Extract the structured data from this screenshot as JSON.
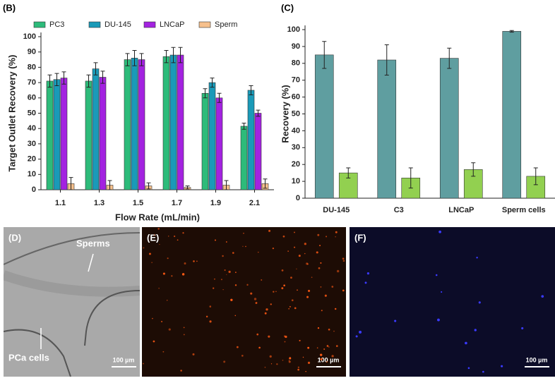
{
  "chart_data": [
    {
      "type": "bar",
      "panel": "(B)",
      "y_label": "Target Outlet Recovery (%)",
      "x_label": "Flow Rate (mL/min)",
      "categories": [
        "1.1",
        "1.3",
        "1.5",
        "1.7",
        "1.9",
        "2.1"
      ],
      "series": [
        {
          "name": "PC3",
          "color": "#2dbb7a",
          "values": [
            71,
            71,
            85,
            87,
            63,
            41.5
          ],
          "errors": [
            4,
            4,
            4,
            4,
            3,
            2
          ]
        },
        {
          "name": "DU-145",
          "color": "#1a9ab8",
          "values": [
            72,
            79,
            86,
            88,
            70,
            65
          ],
          "errors": [
            4,
            4,
            5,
            5,
            3,
            3
          ]
        },
        {
          "name": "LNCaP",
          "color": "#a322e0",
          "values": [
            73,
            73.5,
            85,
            88,
            60,
            50
          ],
          "errors": [
            4,
            4,
            4,
            5,
            3,
            2
          ]
        },
        {
          "name": "Sperm",
          "color": "#f6c08c",
          "values": [
            4,
            3,
            2.5,
            1.5,
            3,
            4
          ],
          "errors": [
            4,
            3,
            2,
            1,
            3,
            3
          ]
        }
      ],
      "ylim": [
        0,
        100
      ],
      "yticks": [
        0,
        10,
        20,
        30,
        40,
        50,
        60,
        70,
        80,
        90,
        100
      ]
    },
    {
      "type": "bar",
      "panel": "(C)",
      "y_label": "Recovery (%)",
      "categories": [
        "DU-145",
        "C3",
        "LNCaP",
        "Sperm cells"
      ],
      "series": [
        {
          "color": "#5f9ea0",
          "values": [
            85,
            82,
            83,
            99
          ],
          "errors": [
            8,
            9,
            6,
            0.5
          ]
        },
        {
          "color": "#92d050",
          "values": [
            15,
            12,
            17,
            13
          ],
          "errors": [
            3,
            6,
            4,
            5
          ]
        }
      ],
      "ylim": [
        0,
        100
      ],
      "yticks": [
        0,
        10,
        20,
        30,
        40,
        50,
        60,
        70,
        80,
        90,
        100
      ]
    }
  ],
  "panels": [
    {
      "label": "(D)",
      "annotations": [
        "Sperms",
        "PCa cells"
      ],
      "scale_bar": "100 µm"
    },
    {
      "label": "(E)",
      "scale_bar": "100 µm"
    },
    {
      "label": "(F)",
      "scale_bar": "100 µm"
    }
  ]
}
